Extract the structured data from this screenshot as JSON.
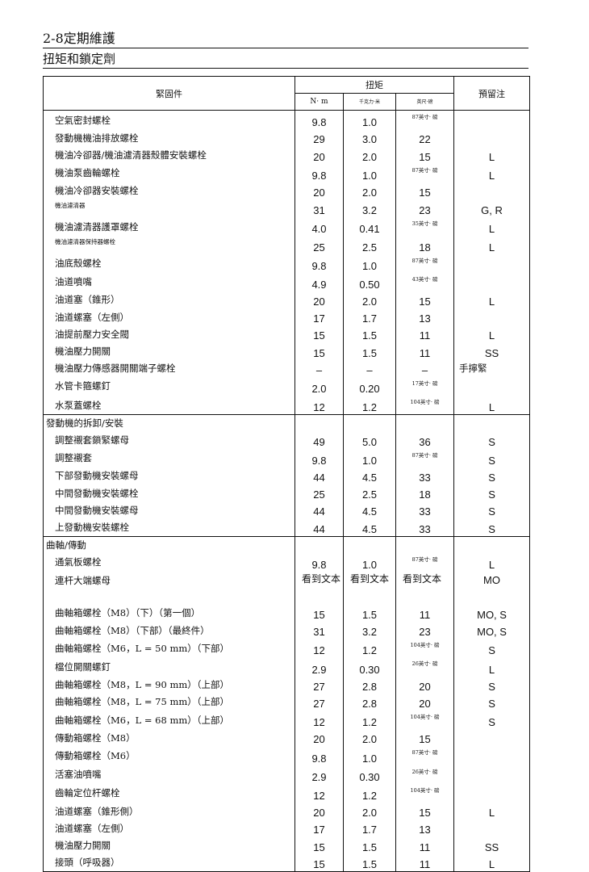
{
  "header": {
    "chapter": "2-8定期維護",
    "subtitle": "扭矩和鎖定劑"
  },
  "table": {
    "col_fastener": "緊固件",
    "col_torque": "扭矩",
    "col_remarks": "預留注",
    "unit_nm": "N· m",
    "unit_kgf": "千克力·米",
    "unit_ftlb": "英尺·磅",
    "sections": [
      {
        "title": "",
        "rows": [
          {
            "name": "空氣密封螺栓",
            "nm": "9.8",
            "kgf": "1.0",
            "ftlb": "87英寸· 磅",
            "note": ""
          },
          {
            "name": "發動機機油排放螺栓",
            "nm": "29",
            "kgf": "3.0",
            "ftlb": "22",
            "note": ""
          },
          {
            "name": "機油冷卻器/機油濾清器殼體安裝螺栓",
            "nm": "20",
            "kgf": "2.0",
            "ftlb": "15",
            "note": "L"
          },
          {
            "name": "機油泵齒輪螺栓",
            "nm": "9.8",
            "kgf": "1.0",
            "ftlb": "87英寸· 磅",
            "note": "L"
          },
          {
            "name": "機油冷卻器安裝螺栓",
            "nm": "20",
            "kgf": "2.0",
            "ftlb": "15",
            "note": ""
          },
          {
            "name": "機油濾清器",
            "nm": "31",
            "kgf": "3.2",
            "ftlb": "23",
            "note": "G, R"
          },
          {
            "name": "機油濾清器護罩螺栓",
            "nm": "4.0",
            "kgf": "0.41",
            "ftlb": "35英寸· 磅",
            "note": "L"
          },
          {
            "name": "機油濾清器保持器螺栓",
            "nm": "25",
            "kgf": "2.5",
            "ftlb": "18",
            "note": "L"
          },
          {
            "name": "油底殼螺栓",
            "nm": "9.8",
            "kgf": "1.0",
            "ftlb": "87英寸· 磅",
            "note": ""
          },
          {
            "name": "油道噴嘴",
            "nm": "4.9",
            "kgf": "0.50",
            "ftlb": "43英寸· 磅",
            "note": ""
          },
          {
            "name": "油道塞（錐形）",
            "nm": "20",
            "kgf": "2.0",
            "ftlb": "15",
            "note": "L"
          },
          {
            "name": "油道螺塞（左側）",
            "nm": "17",
            "kgf": "1.7",
            "ftlb": "13",
            "note": ""
          },
          {
            "name": "油提前壓力安全閥",
            "nm": "15",
            "kgf": "1.5",
            "ftlb": "11",
            "note": "L"
          },
          {
            "name": "機油壓力開關",
            "nm": "15",
            "kgf": "1.5",
            "ftlb": "11",
            "note": "SS"
          },
          {
            "name": "機油壓力傳感器開關端子螺栓",
            "nm": "–",
            "kgf": "–",
            "ftlb": "–",
            "note": "手擰緊"
          },
          {
            "name": "水管卡箍螺釘",
            "nm": "2.0",
            "kgf": "0.20",
            "ftlb": "17英寸· 磅",
            "note": ""
          },
          {
            "name": "水泵蓋螺栓",
            "nm": "12",
            "kgf": "1.2",
            "ftlb": "104英寸· 磅",
            "note": "L"
          }
        ]
      },
      {
        "title": "發動機的拆卸/安裝",
        "rows": [
          {
            "name": "調整襯套鎖緊螺母",
            "nm": "49",
            "kgf": "5.0",
            "ftlb": "36",
            "note": "S"
          },
          {
            "name": "調整襯套",
            "nm": "9.8",
            "kgf": "1.0",
            "ftlb": "87英寸· 磅",
            "note": "S"
          },
          {
            "name": "下部發動機安裝螺母",
            "nm": "44",
            "kgf": "4.5",
            "ftlb": "33",
            "note": "S"
          },
          {
            "name": "中間發動機安裝螺栓",
            "nm": "25",
            "kgf": "2.5",
            "ftlb": "18",
            "note": "S"
          },
          {
            "name": "中間發動機安裝螺母",
            "nm": "44",
            "kgf": "4.5",
            "ftlb": "33",
            "note": "S"
          },
          {
            "name": "上發動機安裝螺栓",
            "nm": "44",
            "kgf": "4.5",
            "ftlb": "33",
            "note": "S"
          }
        ]
      },
      {
        "title": "曲軸/傳動",
        "rows": [
          {
            "name": "通氣板螺栓",
            "nm": "9.8",
            "kgf": "1.0",
            "ftlb": "87英寸· 磅",
            "note": "L"
          },
          {
            "name": "連杆大端螺母",
            "nm": "看到文本",
            "kgf": "看到文本",
            "ftlb": "看到文本",
            "note": "MO"
          },
          {
            "name": "曲軸箱螺栓（M8）（下）（第一個）",
            "nm": "15",
            "kgf": "1.5",
            "ftlb": "11",
            "note": "MO, S"
          },
          {
            "name": "曲軸箱螺栓（M8）（下部）（最終件）",
            "nm": "31",
            "kgf": "3.2",
            "ftlb": "23",
            "note": "MO, S"
          },
          {
            "name": "曲軸箱螺栓（M6，L = 50 mm）（下部）",
            "nm": "12",
            "kgf": "1.2",
            "ftlb": "104英寸· 磅",
            "note": "S"
          },
          {
            "name": "檔位開關螺釘",
            "nm": "2.9",
            "kgf": "0.30",
            "ftlb": "26英寸· 磅",
            "note": "L"
          },
          {
            "name": "曲軸箱螺栓（M8，L = 90 mm）（上部）",
            "nm": "27",
            "kgf": "2.8",
            "ftlb": "20",
            "note": "S"
          },
          {
            "name": "曲軸箱螺栓（M8，L = 75 mm）（上部）",
            "nm": "27",
            "kgf": "2.8",
            "ftlb": "20",
            "note": "S"
          },
          {
            "name": "曲軸箱螺栓（M6，L = 68 mm）（上部）",
            "nm": "12",
            "kgf": "1.2",
            "ftlb": "104英寸· 磅",
            "note": "S"
          },
          {
            "name": "傳動箱螺栓（M8）",
            "nm": "20",
            "kgf": "2.0",
            "ftlb": "15",
            "note": ""
          },
          {
            "name": "傳動箱螺栓（M6）",
            "nm": "9.8",
            "kgf": "1.0",
            "ftlb": "87英寸· 磅",
            "note": ""
          },
          {
            "name": "活塞油噴嘴",
            "nm": "2.9",
            "kgf": "0.30",
            "ftlb": "26英寸· 磅",
            "note": ""
          },
          {
            "name": "齒輪定位杆螺栓",
            "nm": "12",
            "kgf": "1.2",
            "ftlb": "104英寸· 磅",
            "note": ""
          },
          {
            "name": "油道螺塞（錐形側）",
            "nm": "20",
            "kgf": "2.0",
            "ftlb": "15",
            "note": "L"
          },
          {
            "name": "油道螺塞（左側）",
            "nm": "17",
            "kgf": "1.7",
            "ftlb": "13",
            "note": ""
          },
          {
            "name": "機油壓力開關",
            "nm": "15",
            "kgf": "1.5",
            "ftlb": "11",
            "note": "SS"
          },
          {
            "name": "接頭（呼吸器）",
            "nm": "15",
            "kgf": "1.5",
            "ftlb": "11",
            "note": "L"
          }
        ]
      }
    ]
  }
}
